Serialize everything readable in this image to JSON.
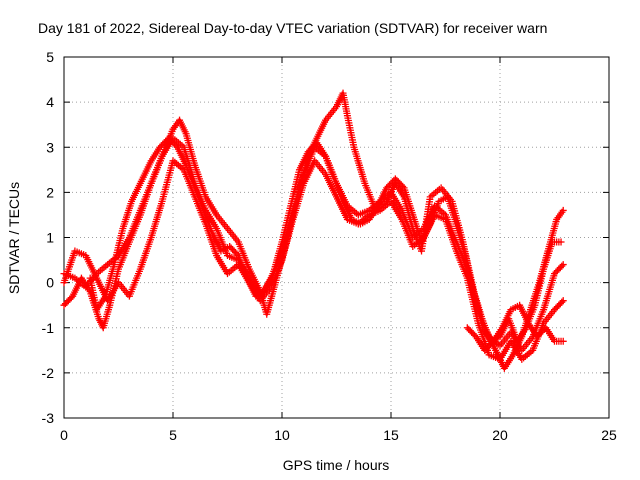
{
  "chart_data": {
    "type": "scatter",
    "title": "Day 181 of 2022, Sidereal Day-to-day VTEC variation (SDTVAR) for receiver warn",
    "xlabel": "GPS time / hours",
    "ylabel": "SDTVAR / TECUs",
    "xlim": [
      0,
      25
    ],
    "ylim": [
      -3,
      5
    ],
    "xticks": [
      0,
      5,
      10,
      15,
      20,
      25
    ],
    "yticks": [
      -3,
      -2,
      -1,
      0,
      1,
      2,
      3,
      4,
      5
    ],
    "grid": true,
    "marker": "plus",
    "color": "#ff0000",
    "series": [
      {
        "x": [
          0.0,
          0.4,
          0.8,
          1.2,
          1.6,
          1.8,
          2.1,
          2.5,
          3.0,
          3.5,
          4.0,
          4.5,
          5.0,
          5.3,
          5.6,
          6.0,
          6.5,
          7.0,
          7.5,
          8.0,
          8.5,
          9.0,
          9.3,
          9.7,
          10.2,
          10.7,
          11.2,
          11.6,
          12.0,
          12.5,
          12.8,
          13.0,
          13.3,
          13.8,
          14.3,
          14.8,
          15.2,
          15.6,
          16.0,
          16.4,
          16.8,
          17.3,
          17.8,
          18.3,
          18.8,
          19.3,
          19.8,
          20.2,
          20.6,
          21.0,
          21.4,
          21.8,
          22.2,
          22.6,
          22.9
        ],
        "y": [
          -0.5,
          -0.3,
          0.1,
          -0.2,
          -0.8,
          -1.0,
          -0.5,
          0.3,
          0.9,
          1.5,
          2.2,
          2.8,
          3.4,
          3.6,
          3.3,
          2.6,
          1.9,
          1.5,
          1.2,
          0.9,
          0.3,
          -0.2,
          -0.7,
          0.0,
          0.9,
          1.9,
          2.8,
          3.2,
          3.6,
          3.9,
          4.2,
          3.7,
          3.0,
          2.2,
          1.6,
          1.8,
          2.2,
          1.9,
          1.2,
          0.7,
          1.9,
          2.1,
          1.8,
          0.9,
          -0.2,
          -1.0,
          -1.5,
          -1.9,
          -1.6,
          -1.2,
          -0.6,
          0.0,
          0.7,
          1.4,
          1.6
        ]
      },
      {
        "x": [
          0.0,
          0.5,
          1.0,
          1.5,
          2.0,
          2.5,
          3.0,
          3.5,
          4.0,
          4.5,
          5.0,
          5.5,
          6.0,
          6.5,
          7.0,
          7.5,
          8.0,
          8.5,
          9.0,
          9.5,
          10.0,
          10.5,
          11.0,
          11.5,
          12.0,
          12.5,
          13.0,
          13.5,
          14.0,
          14.5,
          15.0,
          15.5,
          16.0,
          16.5,
          17.0,
          17.5,
          18.0,
          18.5,
          19.0,
          19.5,
          20.0,
          20.5,
          21.0,
          21.5,
          22.0,
          22.5,
          22.9
        ],
        "y": [
          0.2,
          0.1,
          -0.1,
          0.2,
          0.4,
          0.6,
          1.0,
          1.6,
          2.2,
          2.8,
          3.2,
          3.0,
          2.2,
          1.6,
          1.2,
          0.6,
          0.5,
          0.1,
          -0.3,
          0.1,
          0.7,
          1.6,
          2.4,
          3.0,
          2.8,
          2.2,
          1.7,
          1.5,
          1.6,
          1.8,
          2.0,
          1.6,
          1.0,
          1.2,
          1.7,
          1.5,
          0.9,
          0.3,
          -0.6,
          -1.2,
          -1.4,
          -1.1,
          -1.5,
          -1.2,
          -0.6,
          0.2,
          0.4
        ]
      },
      {
        "x": [
          0.0,
          0.5,
          1.0,
          1.5,
          2.0,
          2.5,
          3.0,
          3.5,
          4.0,
          4.5,
          5.0,
          5.5,
          6.0,
          6.5,
          7.0,
          7.5,
          8.0,
          8.5,
          9.0,
          9.5,
          10.0,
          10.5,
          11.0,
          11.5,
          12.0,
          12.5,
          13.0,
          13.5,
          14.0,
          14.5,
          15.0,
          15.5,
          16.0,
          16.5,
          17.0,
          17.5,
          18.0,
          18.5,
          19.0,
          19.5,
          20.0,
          20.5,
          21.0,
          21.5,
          22.0,
          22.5,
          22.9
        ],
        "y": [
          0.0,
          0.7,
          0.6,
          0.1,
          -0.4,
          0.0,
          -0.3,
          0.3,
          1.0,
          1.8,
          2.7,
          2.5,
          1.9,
          1.3,
          0.6,
          0.2,
          0.4,
          0.0,
          -0.4,
          -0.1,
          0.5,
          1.4,
          2.2,
          2.7,
          2.4,
          1.9,
          1.4,
          1.3,
          1.5,
          1.6,
          1.8,
          1.4,
          0.8,
          1.0,
          1.5,
          1.4,
          0.7,
          0.1,
          -0.9,
          -1.6,
          -1.7,
          -1.3,
          -1.7,
          -1.5,
          -0.9,
          -0.6,
          -0.4
        ]
      },
      {
        "x": [
          1.2,
          1.5,
          1.9,
          2.3,
          2.7,
          3.1,
          3.5,
          4.0,
          4.4,
          4.8,
          5.2,
          5.6,
          6.0,
          6.4,
          6.8,
          7.2,
          7.6,
          8.0,
          8.4,
          8.8,
          9.2,
          9.6,
          10.0,
          10.4,
          10.8,
          11.2,
          11.6,
          12.0,
          12.4,
          12.8,
          13.2,
          13.6,
          14.0,
          14.4,
          14.8,
          15.2,
          15.6,
          16.0,
          16.4,
          16.8,
          17.2,
          17.6,
          18.0,
          18.4,
          18.8,
          19.2,
          19.6,
          20.0,
          20.4,
          20.8,
          21.2,
          21.6,
          22.0,
          22.4,
          22.8
        ],
        "y": [
          0.1,
          -0.6,
          -0.3,
          0.4,
          1.2,
          1.8,
          2.2,
          2.7,
          3.0,
          3.2,
          3.0,
          2.6,
          2.1,
          1.6,
          1.1,
          0.7,
          0.8,
          0.6,
          0.1,
          -0.3,
          -0.2,
          0.2,
          0.9,
          1.7,
          2.5,
          2.9,
          3.1,
          2.8,
          2.3,
          1.8,
          1.4,
          1.3,
          1.4,
          1.7,
          2.1,
          2.3,
          2.1,
          1.5,
          0.9,
          1.3,
          1.8,
          1.9,
          1.3,
          0.6,
          -0.2,
          -1.0,
          -1.3,
          -1.2,
          -0.8,
          -1.3,
          -1.0,
          -0.5,
          0.3,
          0.9,
          0.9
        ]
      },
      {
        "x": [
          18.5,
          18.9,
          19.3,
          19.7,
          20.1,
          20.5,
          20.9,
          21.3,
          21.7,
          22.1,
          22.5,
          22.9
        ],
        "y": [
          -1.0,
          -1.2,
          -1.5,
          -1.3,
          -1.0,
          -0.6,
          -0.5,
          -0.9,
          -1.2,
          -1.0,
          -1.3,
          -1.3
        ]
      }
    ]
  }
}
